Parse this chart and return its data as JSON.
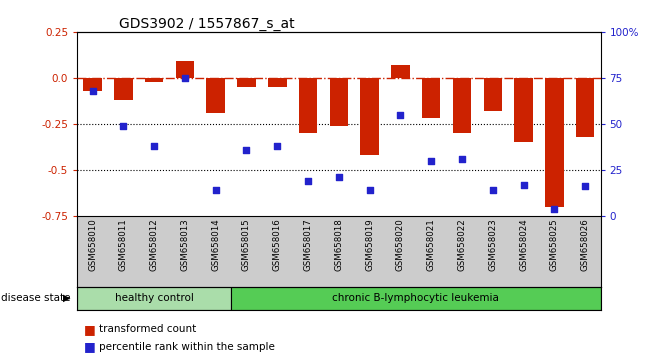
{
  "title": "GDS3902 / 1557867_s_at",
  "samples": [
    "GSM658010",
    "GSM658011",
    "GSM658012",
    "GSM658013",
    "GSM658014",
    "GSM658015",
    "GSM658016",
    "GSM658017",
    "GSM658018",
    "GSM658019",
    "GSM658020",
    "GSM658021",
    "GSM658022",
    "GSM658023",
    "GSM658024",
    "GSM658025",
    "GSM658026"
  ],
  "bar_values": [
    -0.07,
    -0.12,
    -0.02,
    0.09,
    -0.19,
    -0.05,
    -0.05,
    -0.3,
    -0.26,
    -0.42,
    0.07,
    -0.22,
    -0.3,
    -0.18,
    -0.35,
    -0.7,
    -0.32
  ],
  "percentile_values": [
    0.68,
    0.49,
    0.38,
    0.75,
    0.14,
    0.36,
    0.38,
    0.19,
    0.21,
    0.14,
    0.55,
    0.3,
    0.31,
    0.14,
    0.17,
    0.04,
    0.16
  ],
  "bar_color": "#cc2200",
  "dot_color": "#2222cc",
  "hline_color": "#cc2200",
  "dotted_lines": [
    -0.25,
    -0.5
  ],
  "ylim_left": [
    -0.75,
    0.25
  ],
  "ylim_right": [
    0,
    100
  ],
  "left_ticks": [
    0.25,
    0.0,
    -0.25,
    -0.5,
    -0.75
  ],
  "right_ticks": [
    0,
    25,
    50,
    75,
    100
  ],
  "right_tick_labels": [
    "0",
    "25",
    "50",
    "75",
    "100%"
  ],
  "healthy_count": 5,
  "group_labels": [
    "healthy control",
    "chronic B-lymphocytic leukemia"
  ],
  "healthy_color": "#aaddaa",
  "leukemia_color": "#55cc55",
  "disease_label": "disease state",
  "legend_bar_label": "transformed count",
  "legend_dot_label": "percentile rank within the sample",
  "bar_width": 0.6,
  "tick_area_color": "#cccccc"
}
